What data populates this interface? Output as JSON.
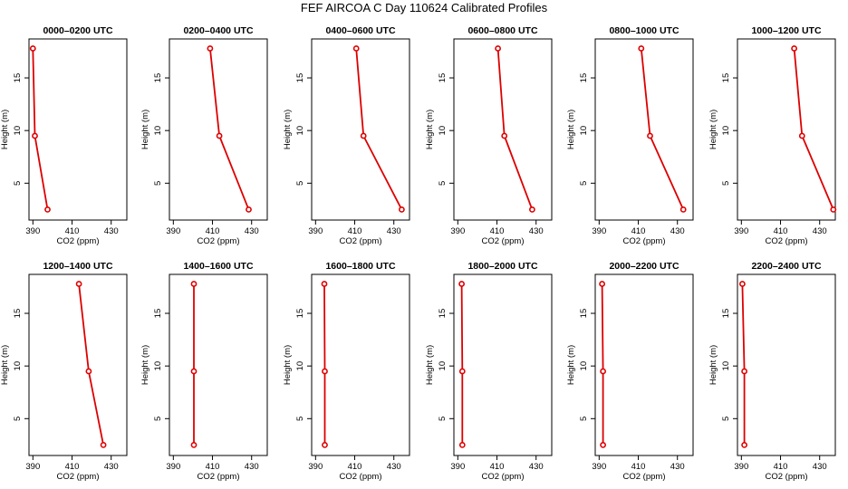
{
  "title": "FEF AIRCOA C  Day 110624  Calibrated Profiles",
  "colors": {
    "series": "#dd0000",
    "axis": "#000000",
    "background": "#ffffff"
  },
  "chart_data": [
    {
      "type": "line",
      "panel_title": "0000–0200 UTC",
      "xlabel": "CO2 (ppm)",
      "ylabel": "Height (m)",
      "xticks": [
        "390",
        "410",
        "430"
      ],
      "yticks": [
        "5",
        "10",
        "15"
      ],
      "xlim": [
        388,
        438
      ],
      "ylim": [
        1.5,
        18.7
      ],
      "x": [
        390.0,
        391.0,
        397.5
      ],
      "y": [
        17.8,
        9.5,
        2.5
      ]
    },
    {
      "type": "line",
      "panel_title": "0200–0400 UTC",
      "xlabel": "CO2 (ppm)",
      "ylabel": "Height (m)",
      "xticks": [
        "390",
        "410",
        "430"
      ],
      "yticks": [
        "5",
        "10",
        "15"
      ],
      "xlim": [
        388,
        438
      ],
      "ylim": [
        1.5,
        18.7
      ],
      "x": [
        408.8,
        413.5,
        428.5
      ],
      "y": [
        17.8,
        9.5,
        2.5
      ]
    },
    {
      "type": "line",
      "panel_title": "0400–0600 UTC",
      "xlabel": "CO2 (ppm)",
      "ylabel": "Height (m)",
      "xticks": [
        "390",
        "410",
        "430"
      ],
      "yticks": [
        "5",
        "10",
        "15"
      ],
      "xlim": [
        388,
        438
      ],
      "ylim": [
        1.5,
        18.7
      ],
      "x": [
        410.8,
        414.5,
        434.0
      ],
      "y": [
        17.8,
        9.5,
        2.5
      ]
    },
    {
      "type": "line",
      "panel_title": "0600–0800 UTC",
      "xlabel": "CO2 (ppm)",
      "ylabel": "Height (m)",
      "xticks": [
        "390",
        "410",
        "430"
      ],
      "yticks": [
        "5",
        "10",
        "15"
      ],
      "xlim": [
        388,
        438
      ],
      "ylim": [
        1.5,
        18.7
      ],
      "x": [
        410.5,
        413.8,
        428.0
      ],
      "y": [
        17.8,
        9.5,
        2.5
      ]
    },
    {
      "type": "line",
      "panel_title": "0800–1000 UTC",
      "xlabel": "CO2 (ppm)",
      "ylabel": "Height (m)",
      "xticks": [
        "390",
        "410",
        "430"
      ],
      "yticks": [
        "5",
        "10",
        "15"
      ],
      "xlim": [
        388,
        438
      ],
      "ylim": [
        1.5,
        18.7
      ],
      "x": [
        411.5,
        416.0,
        433.0
      ],
      "y": [
        17.8,
        9.5,
        2.5
      ]
    },
    {
      "type": "line",
      "panel_title": "1000–1200 UTC",
      "xlabel": "CO2 (ppm)",
      "ylabel": "Height (m)",
      "xticks": [
        "390",
        "410",
        "430"
      ],
      "yticks": [
        "5",
        "10",
        "15"
      ],
      "xlim": [
        388,
        438
      ],
      "ylim": [
        1.5,
        18.7
      ],
      "x": [
        417.0,
        421.0,
        437.0
      ],
      "y": [
        17.8,
        9.5,
        2.5
      ]
    },
    {
      "type": "line",
      "panel_title": "1200–1400 UTC",
      "xlabel": "CO2 (ppm)",
      "ylabel": "Height (m)",
      "xticks": [
        "390",
        "410",
        "430"
      ],
      "yticks": [
        "5",
        "10",
        "15"
      ],
      "xlim": [
        388,
        438
      ],
      "ylim": [
        1.5,
        18.7
      ],
      "x": [
        413.5,
        418.5,
        426.0
      ],
      "y": [
        17.8,
        9.5,
        2.5
      ]
    },
    {
      "type": "line",
      "panel_title": "1400–1600 UTC",
      "xlabel": "CO2 (ppm)",
      "ylabel": "Height (m)",
      "xticks": [
        "390",
        "410",
        "430"
      ],
      "yticks": [
        "5",
        "10",
        "15"
      ],
      "xlim": [
        388,
        438
      ],
      "ylim": [
        1.5,
        18.7
      ],
      "x": [
        400.5,
        400.5,
        400.5
      ],
      "y": [
        17.8,
        9.5,
        2.5
      ]
    },
    {
      "type": "line",
      "panel_title": "1600–1800 UTC",
      "xlabel": "CO2 (ppm)",
      "ylabel": "Height (m)",
      "xticks": [
        "390",
        "410",
        "430"
      ],
      "yticks": [
        "5",
        "10",
        "15"
      ],
      "xlim": [
        388,
        438
      ],
      "ylim": [
        1.5,
        18.7
      ],
      "x": [
        394.5,
        394.7,
        394.7
      ],
      "y": [
        17.8,
        9.5,
        2.5
      ]
    },
    {
      "type": "line",
      "panel_title": "1800–2000 UTC",
      "xlabel": "CO2 (ppm)",
      "ylabel": "Height (m)",
      "xticks": [
        "390",
        "410",
        "430"
      ],
      "yticks": [
        "5",
        "10",
        "15"
      ],
      "xlim": [
        388,
        438
      ],
      "ylim": [
        1.5,
        18.7
      ],
      "x": [
        392.0,
        392.3,
        392.3
      ],
      "y": [
        17.8,
        9.5,
        2.5
      ]
    },
    {
      "type": "line",
      "panel_title": "2000–2200 UTC",
      "xlabel": "CO2 (ppm)",
      "ylabel": "Height (m)",
      "xticks": [
        "390",
        "410",
        "430"
      ],
      "yticks": [
        "5",
        "10",
        "15"
      ],
      "xlim": [
        388,
        438
      ],
      "ylim": [
        1.5,
        18.7
      ],
      "x": [
        391.5,
        392.0,
        392.0
      ],
      "y": [
        17.8,
        9.5,
        2.5
      ]
    },
    {
      "type": "line",
      "panel_title": "2200–2400 UTC",
      "xlabel": "CO2 (ppm)",
      "ylabel": "Height (m)",
      "xticks": [
        "390",
        "410",
        "430"
      ],
      "yticks": [
        "5",
        "10",
        "15"
      ],
      "xlim": [
        388,
        438
      ],
      "ylim": [
        1.5,
        18.7
      ],
      "x": [
        390.5,
        391.5,
        391.5
      ],
      "y": [
        17.8,
        9.5,
        2.5
      ]
    }
  ]
}
